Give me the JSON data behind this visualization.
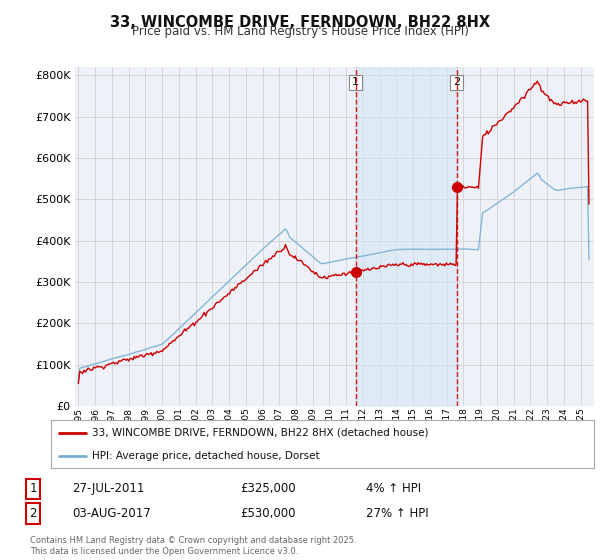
{
  "title": "33, WINCOMBE DRIVE, FERNDOWN, BH22 8HX",
  "subtitle": "Price paid vs. HM Land Registry's House Price Index (HPI)",
  "legend_label_red": "33, WINCOMBE DRIVE, FERNDOWN, BH22 8HX (detached house)",
  "legend_label_blue": "HPI: Average price, detached house, Dorset",
  "footnote": "Contains HM Land Registry data © Crown copyright and database right 2025.\nThis data is licensed under the Open Government Licence v3.0.",
  "transaction1": {
    "label": "1",
    "date": "27-JUL-2011",
    "price": "£325,000",
    "hpi": "4% ↑ HPI"
  },
  "transaction2": {
    "label": "2",
    "date": "03-AUG-2017",
    "price": "£530,000",
    "hpi": "27% ↑ HPI"
  },
  "vline1_x": 2011.57,
  "vline2_x": 2017.59,
  "marker1_y": 325000,
  "marker2_y": 530000,
  "ylim": [
    0,
    820000
  ],
  "xlim_start": 1994.8,
  "xlim_end": 2025.8,
  "background_color": "#eef2f8",
  "red_color": "#cc0000",
  "blue_color": "#7ab0d4",
  "vline_color": "#cc0000",
  "grid_color": "#cccccc",
  "shade_color": "#d0e4f5"
}
